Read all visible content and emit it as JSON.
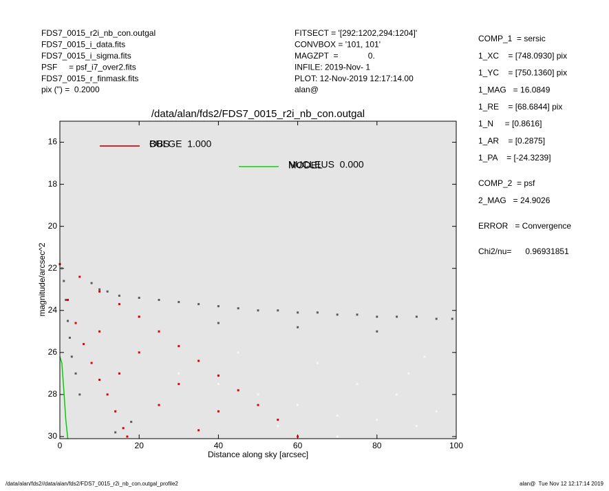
{
  "header": {
    "left": [
      "FDS7_0015_r2i_nb_con.outgal",
      "FDS7_0015_i_data.fits",
      "FDS7_0015_i_sigma.fits",
      "PSF     = psf_i7_over2.fits",
      "FDS7_0015_r_finmask.fits",
      "pix (\") =  0.2000"
    ],
    "middle": [
      "FITSECT = '[292:1202,294:1204]'",
      "CONVBOX = '101, 101'",
      "MAGZPT  =             0.",
      "INFILE: 2019-Nov- 1",
      "PLOT: 12-Nov-2019 12:17:14.00",
      "alan@"
    ],
    "right": [
      [
        "COMP_1  = sersic",
        "1_XC    = [748.0930] pix",
        "1_YC    = [750.1360] pix",
        "1_MAG   = 16.0849",
        "1_RE    = [68.6844] pix",
        "1_N     = [0.8616]",
        "1_AR    = [0.2875]",
        "1_PA    = [-24.3239]"
      ],
      [
        "COMP_2  = psf",
        "2_MAG   = 24.9026"
      ],
      [
        "ERROR   = Convergence"
      ],
      [
        "Chi2/nu=      0.96931851"
      ]
    ]
  },
  "footer": {
    "left": "/data/alan/fds2//data/alan/fds2/FDS7_0015_r2i_nb_con.outgal_profile2",
    "right": "alan@  Tue Nov 12 12:17:14 2019"
  },
  "chart_data": {
    "type": "scatter",
    "title": "/data/alan/fds2/FDS7_0015_r2i_nb_con.outgal",
    "x_label": "Distance along sky [arcsec]",
    "y_label": "magnitude/arcsec^2",
    "xlim": [
      0,
      100
    ],
    "ylim": [
      30.1,
      15
    ],
    "xticks": [
      0,
      20,
      40,
      60,
      80,
      100
    ],
    "yticks": [
      16,
      18,
      20,
      22,
      24,
      26,
      28,
      30
    ],
    "grid": false,
    "background": "#e5e5e5",
    "series": [
      {
        "name": "OBS",
        "color": "#5a5a5a",
        "style": "points",
        "x": [
          0.5,
          1,
          1.5,
          2,
          2.5,
          3,
          4,
          5,
          8,
          10,
          12,
          15,
          20,
          25,
          30,
          35,
          40,
          45,
          50,
          55,
          60,
          65,
          70,
          75,
          80,
          85,
          90,
          95,
          99,
          20,
          40,
          60,
          80,
          14,
          18
        ],
        "y": [
          22.0,
          22.6,
          23.5,
          24.5,
          25.3,
          26.2,
          27.0,
          28.0,
          22.7,
          23.0,
          23.1,
          23.3,
          23.4,
          23.5,
          23.6,
          23.7,
          23.8,
          23.9,
          24.0,
          24.0,
          24.1,
          24.1,
          24.2,
          24.2,
          24.3,
          24.3,
          24.3,
          24.4,
          24.4,
          24.3,
          24.6,
          24.8,
          25.0,
          29.8,
          29.3
        ]
      },
      {
        "name": "MODEL",
        "color": "#f6f6f6",
        "style": "points",
        "x": [
          30,
          40,
          50,
          60,
          70,
          80,
          90,
          100,
          65,
          75,
          85,
          95,
          55,
          70,
          88,
          45,
          92
        ],
        "y": [
          27.0,
          27.5,
          28.0,
          28.5,
          29.0,
          29.2,
          29.5,
          29.8,
          26.5,
          27.5,
          28.0,
          28.8,
          29.5,
          30.0,
          27.0,
          26.0,
          26.2
        ]
      },
      {
        "name": "BULGE  1.000",
        "color": "#e00000",
        "style": "points",
        "x": [
          0,
          2,
          4,
          6,
          8,
          10,
          12,
          14,
          16,
          17,
          5,
          10,
          15,
          20,
          25,
          30,
          35,
          40,
          45,
          50,
          55,
          60,
          10,
          20,
          30,
          40,
          15,
          25,
          35
        ],
        "y": [
          21.8,
          23.5,
          24.6,
          25.6,
          26.5,
          27.3,
          28.0,
          28.8,
          29.6,
          30.0,
          22.4,
          23.1,
          23.7,
          24.3,
          25.0,
          25.7,
          26.4,
          27.1,
          27.8,
          28.5,
          29.2,
          30.0,
          25.0,
          26.0,
          27.5,
          28.8,
          27.0,
          28.5,
          29.7
        ]
      },
      {
        "name": "NUCLEUS  0.000",
        "color": "#00d000",
        "style": "line",
        "x": [
          0,
          0.5,
          1,
          1.5,
          2
        ],
        "y": [
          26.2,
          26.5,
          27.8,
          29.2,
          30.1
        ]
      }
    ]
  }
}
